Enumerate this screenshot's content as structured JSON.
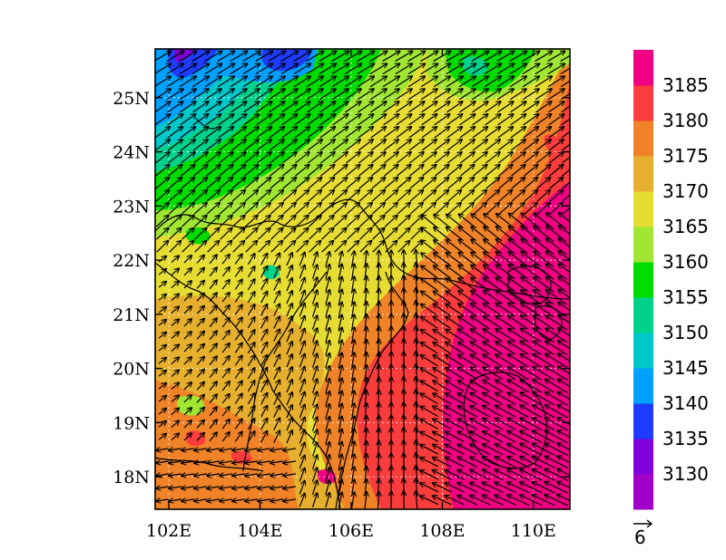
{
  "map": {
    "type": "filled-contour-with-vectors",
    "lon_range": [
      101.7,
      110.8
    ],
    "lat_range": [
      17.4,
      25.9
    ],
    "x_ticks": [
      {
        "value": 102,
        "label": "102E"
      },
      {
        "value": 104,
        "label": "104E"
      },
      {
        "value": 106,
        "label": "106E"
      },
      {
        "value": 108,
        "label": "108E"
      },
      {
        "value": 110,
        "label": "110E"
      }
    ],
    "y_ticks": [
      {
        "value": 18,
        "label": "18N"
      },
      {
        "value": 19,
        "label": "19N"
      },
      {
        "value": 20,
        "label": "20N"
      },
      {
        "value": 21,
        "label": "21N"
      },
      {
        "value": 22,
        "label": "22N"
      },
      {
        "value": 23,
        "label": "23N"
      },
      {
        "value": 24,
        "label": "24N"
      },
      {
        "value": 25,
        "label": "25N"
      }
    ],
    "grid": true
  },
  "colorbar": {
    "levels": [
      3130,
      3135,
      3140,
      3145,
      3150,
      3155,
      3160,
      3165,
      3170,
      3175,
      3180,
      3185
    ],
    "colors": [
      "#a000c8",
      "#8200dc",
      "#1e3cff",
      "#00a0ff",
      "#00c8c8",
      "#00d28c",
      "#00dc00",
      "#a0e632",
      "#e6dc32",
      "#e6af2d",
      "#f08228",
      "#fa3c3c",
      "#f00082"
    ]
  },
  "vector_reference": {
    "label": "6"
  }
}
